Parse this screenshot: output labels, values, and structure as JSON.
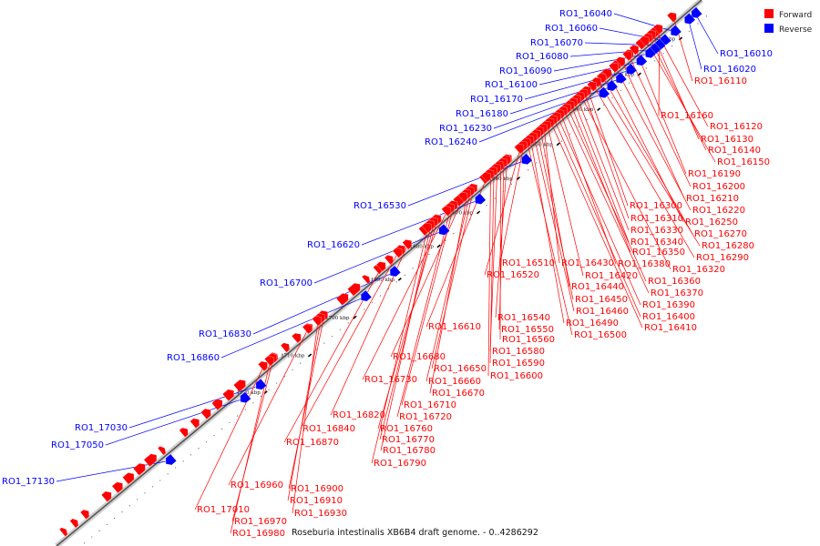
{
  "legend": {
    "forward_label": "Forward",
    "reverse_label": "Reverse",
    "forward_color": "#ff0000",
    "reverse_color": "#0000ff"
  },
  "caption": "Roseburia intestinalis XB6B4 draft genome. - 0..4286292",
  "ticks": [
    "1620 kbp",
    "1630 kbp",
    "1640 kbp",
    "1650 kbp",
    "1660 kbp",
    "1670 kbp",
    "1680 kbp",
    "1690 kbp",
    "1700 kbp",
    "1710 kbp",
    "1720 kbp"
  ],
  "reverse_genes": [
    {
      "id": "RO1_16010"
    },
    {
      "id": "RO1_16020"
    },
    {
      "id": "RO1_16040"
    },
    {
      "id": "RO1_16060"
    },
    {
      "id": "RO1_16070"
    },
    {
      "id": "RO1_16080"
    },
    {
      "id": "RO1_16090"
    },
    {
      "id": "RO1_16100"
    },
    {
      "id": "RO1_16170"
    },
    {
      "id": "RO1_16180"
    },
    {
      "id": "RO1_16230"
    },
    {
      "id": "RO1_16240"
    },
    {
      "id": "RO1_16530"
    },
    {
      "id": "RO1_16620"
    },
    {
      "id": "RO1_16700"
    },
    {
      "id": "RO1_16830"
    },
    {
      "id": "RO1_16860"
    },
    {
      "id": "RO1_17030"
    },
    {
      "id": "RO1_17050"
    },
    {
      "id": "RO1_17130"
    }
  ],
  "forward_genes": [
    {
      "id": "RO1_16110"
    },
    {
      "id": "RO1_16120"
    },
    {
      "id": "RO1_16130"
    },
    {
      "id": "RO1_16140"
    },
    {
      "id": "RO1_16150"
    },
    {
      "id": "RO1_16160"
    },
    {
      "id": "RO1_16190"
    },
    {
      "id": "RO1_16200"
    },
    {
      "id": "RO1_16210"
    },
    {
      "id": "RO1_16220"
    },
    {
      "id": "RO1_16250"
    },
    {
      "id": "RO1_16270"
    },
    {
      "id": "RO1_16280"
    },
    {
      "id": "RO1_16290"
    },
    {
      "id": "RO1_16300"
    },
    {
      "id": "RO1_16310"
    },
    {
      "id": "RO1_16320"
    },
    {
      "id": "RO1_16330"
    },
    {
      "id": "RO1_16340"
    },
    {
      "id": "RO1_16350"
    },
    {
      "id": "RO1_16360"
    },
    {
      "id": "RO1_16370"
    },
    {
      "id": "RO1_16380"
    },
    {
      "id": "RO1_16390"
    },
    {
      "id": "RO1_16400"
    },
    {
      "id": "RO1_16410"
    },
    {
      "id": "RO1_16420"
    },
    {
      "id": "RO1_16430"
    },
    {
      "id": "RO1_16440"
    },
    {
      "id": "RO1_16450"
    },
    {
      "id": "RO1_16460"
    },
    {
      "id": "RO1_16490"
    },
    {
      "id": "RO1_16500"
    },
    {
      "id": "RO1_16510"
    },
    {
      "id": "RO1_16520"
    },
    {
      "id": "RO1_16540"
    },
    {
      "id": "RO1_16550"
    },
    {
      "id": "RO1_16560"
    },
    {
      "id": "RO1_16580"
    },
    {
      "id": "RO1_16590"
    },
    {
      "id": "RO1_16600"
    },
    {
      "id": "RO1_16610"
    },
    {
      "id": "RO1_16650"
    },
    {
      "id": "RO1_16660"
    },
    {
      "id": "RO1_16670"
    },
    {
      "id": "RO1_16680"
    },
    {
      "id": "RO1_16710"
    },
    {
      "id": "RO1_16720"
    },
    {
      "id": "RO1_16730"
    },
    {
      "id": "RO1_16760"
    },
    {
      "id": "RO1_16770"
    },
    {
      "id": "RO1_16780"
    },
    {
      "id": "RO1_16790"
    },
    {
      "id": "RO1_16820"
    },
    {
      "id": "RO1_16840"
    },
    {
      "id": "RO1_16870"
    },
    {
      "id": "RO1_16900"
    },
    {
      "id": "RO1_16910"
    },
    {
      "id": "RO1_16930"
    },
    {
      "id": "RO1_16960"
    },
    {
      "id": "RO1_16970"
    },
    {
      "id": "RO1_16980"
    },
    {
      "id": "RO1_17010"
    }
  ]
}
